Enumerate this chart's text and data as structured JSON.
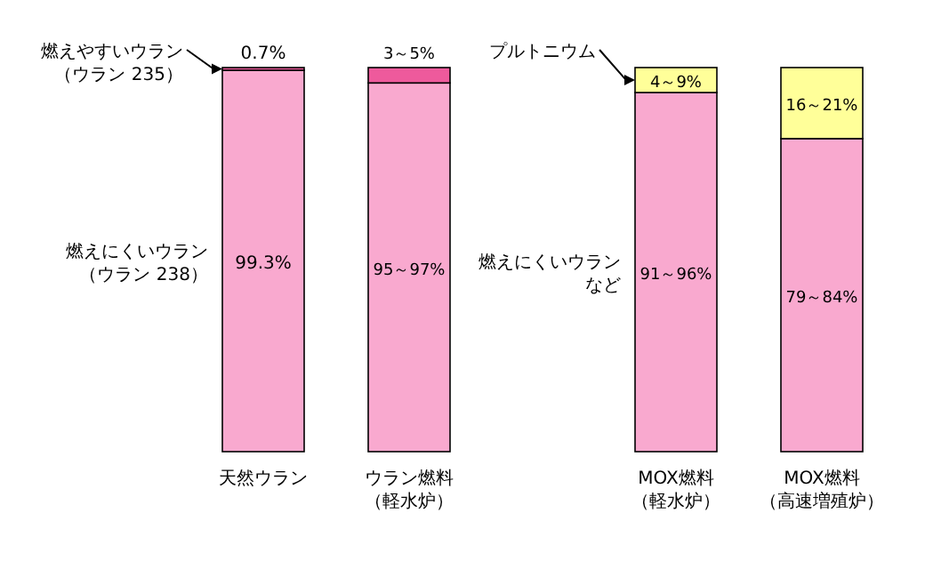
{
  "chart_data": {
    "type": "bar",
    "stacked": true,
    "categories": [
      "天然ウラン",
      "ウラン燃料（軽水炉）",
      "MOX燃料（軽水炉）",
      "MOX燃料（高速増殖炉）"
    ],
    "series": [
      {
        "name": "燃えにくいウラン（ウラン 238）",
        "color": "#f9a9cf",
        "values": [
          99.3,
          96,
          null,
          null
        ],
        "value_labels": [
          "99.3%",
          null,
          null,
          null
        ]
      },
      {
        "name": "燃えやすいウラン（ウラン 235）",
        "color": "#ee5a9c",
        "values": [
          0.7,
          4,
          null,
          null
        ],
        "value_labels": [
          "0.7%",
          null,
          null,
          null
        ]
      },
      {
        "name": "燃えにくいウランなど",
        "color": "#f9a9cf",
        "values": [
          null,
          null,
          93.5,
          81.5
        ]
      },
      {
        "name": "プルトニウム",
        "color": "#ffff99",
        "values": [
          null,
          null,
          6.5,
          18.5
        ]
      }
    ],
    "annotations": [
      "95～97%",
      "3～5%",
      "91～96%",
      "79～84%",
      "4～9%",
      "16～21%"
    ]
  }
}
